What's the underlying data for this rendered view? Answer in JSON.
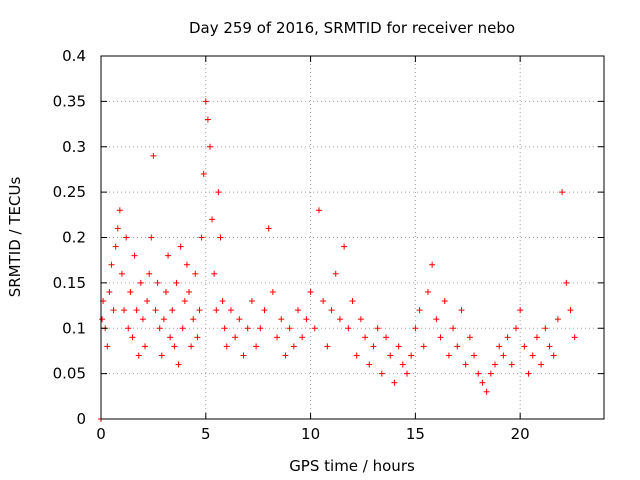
{
  "chart_data": {
    "type": "scatter",
    "title": "Day 259 of 2016, SRMTID for receiver nebo",
    "xlabel": "GPS time / hours",
    "ylabel": "SRMTID / TECUs",
    "xlim": [
      0,
      24
    ],
    "ylim": [
      0,
      0.4
    ],
    "xticks": [
      0,
      5,
      10,
      15,
      20
    ],
    "yticks": [
      0,
      0.05,
      0.1,
      0.15,
      0.2,
      0.25,
      0.3,
      0.35,
      0.4
    ],
    "xtick_labels": [
      "0",
      "5",
      "10",
      "15",
      "20"
    ],
    "ytick_labels": [
      "0",
      "0.05",
      "0.1",
      "0.15",
      "0.2",
      "0.25",
      "0.3",
      "0.35",
      "0.4"
    ],
    "grid": true,
    "marker": "plus",
    "color": "#ff0000",
    "series": [
      {
        "x": [
          0.0,
          0.05,
          0.1,
          0.2,
          0.3,
          0.4,
          0.5,
          0.6,
          0.7,
          0.8,
          0.9,
          1.0,
          1.1,
          1.2,
          1.3,
          1.4,
          1.5,
          1.6,
          1.7,
          1.8,
          1.9,
          2.0,
          2.1,
          2.2,
          2.3,
          2.4,
          2.5,
          2.6,
          2.7,
          2.8,
          2.9,
          3.0,
          3.1,
          3.2,
          3.3,
          3.4,
          3.5,
          3.6,
          3.7,
          3.8,
          3.9,
          4.0,
          4.1,
          4.2,
          4.3,
          4.4,
          4.5,
          4.6,
          4.7,
          4.8,
          4.9,
          5.0,
          5.1,
          5.2,
          5.3,
          5.4,
          5.5,
          5.6,
          5.7,
          5.8,
          5.9,
          6.0,
          6.2,
          6.4,
          6.6,
          6.8,
          7.0,
          7.2,
          7.4,
          7.6,
          7.8,
          8.0,
          8.2,
          8.4,
          8.6,
          8.8,
          9.0,
          9.2,
          9.4,
          9.6,
          9.8,
          10.0,
          10.2,
          10.4,
          10.6,
          10.8,
          11.0,
          11.2,
          11.4,
          11.6,
          11.8,
          12.0,
          12.2,
          12.4,
          12.6,
          12.8,
          13.0,
          13.2,
          13.4,
          13.6,
          13.8,
          14.0,
          14.2,
          14.4,
          14.6,
          14.8,
          15.0,
          15.2,
          15.4,
          15.6,
          15.8,
          16.0,
          16.2,
          16.4,
          16.6,
          16.8,
          17.0,
          17.2,
          17.4,
          17.6,
          17.8,
          18.0,
          18.2,
          18.4,
          18.6,
          18.8,
          19.0,
          19.2,
          19.4,
          19.6,
          19.8,
          20.0,
          20.2,
          20.4,
          20.6,
          20.8,
          21.0,
          21.2,
          21.4,
          21.6,
          21.8,
          22.0,
          22.2,
          22.4,
          22.6
        ],
        "y": [
          0.0,
          0.11,
          0.13,
          0.1,
          0.08,
          0.14,
          0.17,
          0.12,
          0.19,
          0.21,
          0.23,
          0.16,
          0.12,
          0.2,
          0.1,
          0.14,
          0.09,
          0.18,
          0.12,
          0.07,
          0.15,
          0.11,
          0.08,
          0.13,
          0.16,
          0.2,
          0.29,
          0.12,
          0.15,
          0.1,
          0.07,
          0.11,
          0.14,
          0.18,
          0.09,
          0.12,
          0.08,
          0.15,
          0.06,
          0.19,
          0.1,
          0.13,
          0.17,
          0.14,
          0.08,
          0.11,
          0.16,
          0.09,
          0.12,
          0.2,
          0.27,
          0.35,
          0.33,
          0.3,
          0.22,
          0.16,
          0.12,
          0.25,
          0.2,
          0.13,
          0.1,
          0.08,
          0.12,
          0.09,
          0.11,
          0.07,
          0.1,
          0.13,
          0.08,
          0.1,
          0.12,
          0.21,
          0.14,
          0.09,
          0.11,
          0.07,
          0.1,
          0.08,
          0.12,
          0.09,
          0.11,
          0.14,
          0.1,
          0.23,
          0.13,
          0.08,
          0.12,
          0.16,
          0.11,
          0.19,
          0.1,
          0.13,
          0.07,
          0.11,
          0.09,
          0.06,
          0.08,
          0.1,
          0.05,
          0.09,
          0.07,
          0.04,
          0.08,
          0.06,
          0.05,
          0.07,
          0.1,
          0.12,
          0.08,
          0.14,
          0.17,
          0.11,
          0.09,
          0.13,
          0.07,
          0.1,
          0.08,
          0.12,
          0.06,
          0.09,
          0.07,
          0.05,
          0.04,
          0.03,
          0.05,
          0.06,
          0.08,
          0.07,
          0.09,
          0.06,
          0.1,
          0.12,
          0.08,
          0.05,
          0.07,
          0.09,
          0.06,
          0.1,
          0.08,
          0.07,
          0.11,
          0.25,
          0.15,
          0.12,
          0.09
        ]
      }
    ]
  }
}
